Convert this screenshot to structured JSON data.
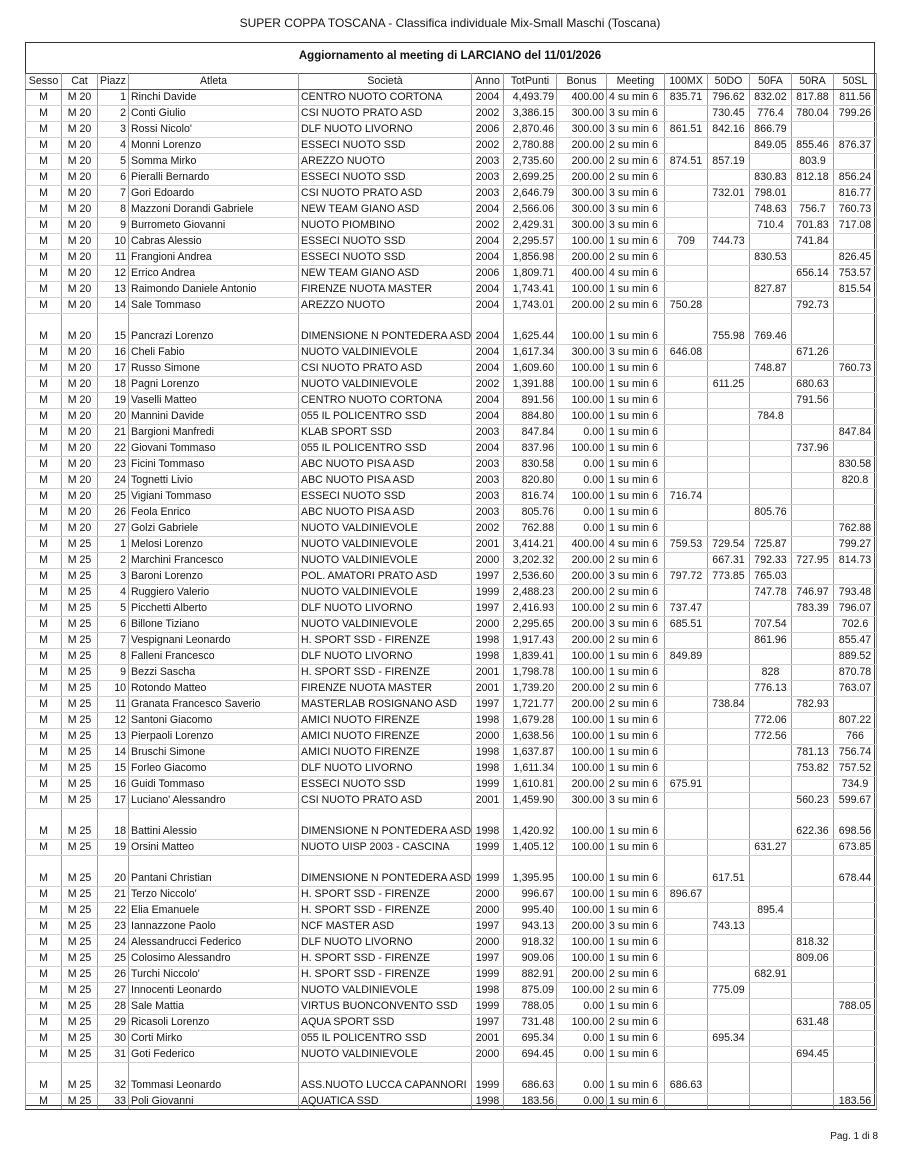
{
  "document": {
    "title": "SUPER COPPA TOSCANA - Classifica individuale Mix-Small Maschi (Toscana)",
    "subtitle": "Aggiornamento al meeting di LARCIANO del 11/01/2026",
    "footer": "Pag. 1 di 8"
  },
  "table": {
    "columns": [
      "Sesso",
      "Cat",
      "Piazz",
      "Atleta",
      "Società",
      "Anno",
      "TotPunti",
      "Bonus",
      "Meeting",
      "100MX",
      "50DO",
      "50FA",
      "50RA",
      "50SL"
    ],
    "rows": [
      [
        "M",
        "M 20",
        "1",
        "Rinchi Davide",
        "CENTRO NUOTO CORTONA",
        "2004",
        "4,493.79",
        "400.00",
        "4 su min 6",
        "835.71",
        "796.62",
        "832.02",
        "817.88",
        "811.56"
      ],
      [
        "M",
        "M 20",
        "2",
        "Conti Giulio",
        "CSI NUOTO PRATO ASD",
        "2002",
        "3,386.15",
        "300.00",
        "3 su min 6",
        "",
        "730.45",
        "776.4",
        "780.04",
        "799.26"
      ],
      [
        "M",
        "M 20",
        "3",
        "Rossi Nicolo'",
        "DLF NUOTO LIVORNO",
        "2006",
        "2,870.46",
        "300.00",
        "3 su min 6",
        "861.51",
        "842.16",
        "866.79",
        "",
        ""
      ],
      [
        "M",
        "M 20",
        "4",
        "Monni Lorenzo",
        "ESSECI NUOTO SSD",
        "2002",
        "2,780.88",
        "200.00",
        "2 su min 6",
        "",
        "",
        "849.05",
        "855.46",
        "876.37"
      ],
      [
        "M",
        "M 20",
        "5",
        "Somma Mirko",
        "AREZZO NUOTO",
        "2003",
        "2,735.60",
        "200.00",
        "2 su min 6",
        "874.51",
        "857.19",
        "",
        "803.9",
        ""
      ],
      [
        "M",
        "M 20",
        "6",
        "Pieralli Bernardo",
        "ESSECI NUOTO SSD",
        "2003",
        "2,699.25",
        "200.00",
        "2 su min 6",
        "",
        "",
        "830.83",
        "812.18",
        "856.24"
      ],
      [
        "M",
        "M 20",
        "7",
        "Gori Edoardo",
        "CSI NUOTO PRATO ASD",
        "2003",
        "2,646.79",
        "300.00",
        "3 su min 6",
        "",
        "732.01",
        "798.01",
        "",
        "816.77"
      ],
      [
        "M",
        "M 20",
        "8",
        "Mazzoni Dorandi Gabriele",
        "NEW TEAM GIANO ASD",
        "2004",
        "2,566.06",
        "300.00",
        "3 su min 6",
        "",
        "",
        "748.63",
        "756.7",
        "760.73"
      ],
      [
        "M",
        "M 20",
        "9",
        "Burrometo Giovanni",
        "NUOTO PIOMBINO",
        "2002",
        "2,429.31",
        "300.00",
        "3 su min 6",
        "",
        "",
        "710.4",
        "701.83",
        "717.08"
      ],
      [
        "M",
        "M 20",
        "10",
        "Cabras Alessio",
        "ESSECI NUOTO SSD",
        "2004",
        "2,295.57",
        "100.00",
        "1 su min 6",
        "709",
        "744.73",
        "",
        "741.84",
        ""
      ],
      [
        "M",
        "M 20",
        "11",
        "Frangioni Andrea",
        "ESSECI NUOTO SSD",
        "2004",
        "1,856.98",
        "200.00",
        "2 su min 6",
        "",
        "",
        "830.53",
        "",
        "826.45"
      ],
      [
        "M",
        "M 20",
        "12",
        "Errico Andrea",
        "NEW TEAM GIANO ASD",
        "2006",
        "1,809.71",
        "400.00",
        "4 su min 6",
        "",
        "",
        "",
        "656.14",
        "753.57"
      ],
      [
        "M",
        "M 20",
        "13",
        "Raimondo Daniele Antonio",
        "FIRENZE NUOTA MASTER",
        "2004",
        "1,743.41",
        "100.00",
        "1 su min 6",
        "",
        "",
        "827.87",
        "",
        "815.54"
      ],
      [
        "M",
        "M 20",
        "14",
        "Sale Tommaso",
        "AREZZO NUOTO",
        "2004",
        "1,743.01",
        "200.00",
        "2 su min 6",
        "750.28",
        "",
        "",
        "792.73",
        ""
      ],
      [
        "M",
        "M 20",
        "15",
        "Pancrazi Lorenzo",
        "DIMENSIONE N PONTEDERA ASD",
        "2004",
        "1,625.44",
        "100.00",
        "1 su min 6",
        "",
        "755.98",
        "769.46",
        "",
        ""
      ],
      [
        "M",
        "M 20",
        "16",
        "Cheli Fabio",
        "NUOTO VALDINIEVOLE",
        "2004",
        "1,617.34",
        "300.00",
        "3 su min 6",
        "646.08",
        "",
        "",
        "671.26",
        ""
      ],
      [
        "M",
        "M 20",
        "17",
        "Russo Simone",
        "CSI NUOTO PRATO ASD",
        "2004",
        "1,609.60",
        "100.00",
        "1 su min 6",
        "",
        "",
        "748.87",
        "",
        "760.73"
      ],
      [
        "M",
        "M 20",
        "18",
        "Pagni Lorenzo",
        "NUOTO VALDINIEVOLE",
        "2002",
        "1,391.88",
        "100.00",
        "1 su min 6",
        "",
        "611.25",
        "",
        "680.63",
        ""
      ],
      [
        "M",
        "M 20",
        "19",
        "Vaselli Matteo",
        "CENTRO NUOTO CORTONA",
        "2004",
        "891.56",
        "100.00",
        "1 su min 6",
        "",
        "",
        "",
        "791.56",
        ""
      ],
      [
        "M",
        "M 20",
        "20",
        "Mannini Davide",
        "055 IL POLICENTRO SSD",
        "2004",
        "884.80",
        "100.00",
        "1 su min 6",
        "",
        "",
        "784.8",
        "",
        ""
      ],
      [
        "M",
        "M 20",
        "21",
        "Bargioni Manfredi",
        "KLAB SPORT SSD",
        "2003",
        "847.84",
        "0.00",
        "1 su min 6",
        "",
        "",
        "",
        "",
        "847.84"
      ],
      [
        "M",
        "M 20",
        "22",
        "Giovani Tommaso",
        "055 IL POLICENTRO SSD",
        "2004",
        "837.96",
        "100.00",
        "1 su min 6",
        "",
        "",
        "",
        "737.96",
        ""
      ],
      [
        "M",
        "M 20",
        "23",
        "Ficini Tommaso",
        "ABC NUOTO PISA ASD",
        "2003",
        "830.58",
        "0.00",
        "1 su min 6",
        "",
        "",
        "",
        "",
        "830.58"
      ],
      [
        "M",
        "M 20",
        "24",
        "Tognetti Livio",
        "ABC NUOTO PISA ASD",
        "2003",
        "820.80",
        "0.00",
        "1 su min 6",
        "",
        "",
        "",
        "",
        "820.8"
      ],
      [
        "M",
        "M 20",
        "25",
        "Vigiani Tommaso",
        "ESSECI NUOTO SSD",
        "2003",
        "816.74",
        "100.00",
        "1 su min 6",
        "716.74",
        "",
        "",
        "",
        ""
      ],
      [
        "M",
        "M 20",
        "26",
        "Feola Enrico",
        "ABC NUOTO PISA ASD",
        "2003",
        "805.76",
        "0.00",
        "1 su min 6",
        "",
        "",
        "805.76",
        "",
        ""
      ],
      [
        "M",
        "M 20",
        "27",
        "Golzi Gabriele",
        "NUOTO VALDINIEVOLE",
        "2002",
        "762.88",
        "0.00",
        "1 su min 6",
        "",
        "",
        "",
        "",
        "762.88"
      ],
      [
        "M",
        "M 25",
        "1",
        "Melosi Lorenzo",
        "NUOTO VALDINIEVOLE",
        "2001",
        "3,414.21",
        "400.00",
        "4 su min 6",
        "759.53",
        "729.54",
        "725.87",
        "",
        "799.27"
      ],
      [
        "M",
        "M 25",
        "2",
        "Marchini Francesco",
        "NUOTO VALDINIEVOLE",
        "2000",
        "3,202.32",
        "200.00",
        "2 su min 6",
        "",
        "667.31",
        "792.33",
        "727.95",
        "814.73"
      ],
      [
        "M",
        "M 25",
        "3",
        "Baroni Lorenzo",
        "POL. AMATORI PRATO ASD",
        "1997",
        "2,536.60",
        "200.00",
        "3 su min 6",
        "797.72",
        "773.85",
        "765.03",
        "",
        ""
      ],
      [
        "M",
        "M 25",
        "4",
        "Ruggiero Valerio",
        "NUOTO VALDINIEVOLE",
        "1999",
        "2,488.23",
        "200.00",
        "2 su min 6",
        "",
        "",
        "747.78",
        "746.97",
        "793.48"
      ],
      [
        "M",
        "M 25",
        "5",
        "Picchetti Alberto",
        "DLF NUOTO LIVORNO",
        "1997",
        "2,416.93",
        "100.00",
        "2 su min 6",
        "737.47",
        "",
        "",
        "783.39",
        "796.07"
      ],
      [
        "M",
        "M 25",
        "6",
        "Billone Tiziano",
        "NUOTO VALDINIEVOLE",
        "2000",
        "2,295.65",
        "200.00",
        "3 su min 6",
        "685.51",
        "",
        "707.54",
        "",
        "702.6"
      ],
      [
        "M",
        "M 25",
        "7",
        "Vespignani Leonardo",
        "H. SPORT SSD - FIRENZE",
        "1998",
        "1,917.43",
        "200.00",
        "2 su min 6",
        "",
        "",
        "861.96",
        "",
        "855.47"
      ],
      [
        "M",
        "M 25",
        "8",
        "Falleni Francesco",
        "DLF NUOTO LIVORNO",
        "1998",
        "1,839.41",
        "100.00",
        "1 su min 6",
        "849.89",
        "",
        "",
        "",
        "889.52"
      ],
      [
        "M",
        "M 25",
        "9",
        "Bezzi Sascha",
        "H. SPORT SSD - FIRENZE",
        "2001",
        "1,798.78",
        "100.00",
        "1 su min 6",
        "",
        "",
        "828",
        "",
        "870.78"
      ],
      [
        "M",
        "M 25",
        "10",
        "Rotondo Matteo",
        "FIRENZE NUOTA MASTER",
        "2001",
        "1,739.20",
        "200.00",
        "2 su min 6",
        "",
        "",
        "776.13",
        "",
        "763.07"
      ],
      [
        "M",
        "M 25",
        "11",
        "Granata Francesco Saverio",
        "MASTERLAB ROSIGNANO ASD",
        "1997",
        "1,721.77",
        "200.00",
        "2 su min 6",
        "",
        "738.84",
        "",
        "782.93",
        ""
      ],
      [
        "M",
        "M 25",
        "12",
        "Santoni Giacomo",
        "AMICI NUOTO FIRENZE",
        "1998",
        "1,679.28",
        "100.00",
        "1 su min 6",
        "",
        "",
        "772.06",
        "",
        "807.22"
      ],
      [
        "M",
        "M 25",
        "13",
        "Pierpaoli Lorenzo",
        "AMICI NUOTO FIRENZE",
        "2000",
        "1,638.56",
        "100.00",
        "1 su min 6",
        "",
        "",
        "772.56",
        "",
        "766"
      ],
      [
        "M",
        "M 25",
        "14",
        "Bruschi Simone",
        "AMICI NUOTO FIRENZE",
        "1998",
        "1,637.87",
        "100.00",
        "1 su min 6",
        "",
        "",
        "",
        "781.13",
        "756.74"
      ],
      [
        "M",
        "M 25",
        "15",
        "Forleo Giacomo",
        "DLF NUOTO LIVORNO",
        "1998",
        "1,611.34",
        "100.00",
        "1 su min 6",
        "",
        "",
        "",
        "753.82",
        "757.52"
      ],
      [
        "M",
        "M 25",
        "16",
        "Guidi Tommaso",
        "ESSECI NUOTO SSD",
        "1999",
        "1,610.81",
        "200.00",
        "2 su min 6",
        "675.91",
        "",
        "",
        "",
        "734.9"
      ],
      [
        "M",
        "M 25",
        "17",
        "Luciano' Alessandro",
        "CSI NUOTO PRATO ASD",
        "2001",
        "1,459.90",
        "300.00",
        "3 su min 6",
        "",
        "",
        "",
        "560.23",
        "599.67"
      ],
      [
        "M",
        "M 25",
        "18",
        "Battini Alessio",
        "DIMENSIONE N PONTEDERA ASD",
        "1998",
        "1,420.92",
        "100.00",
        "1 su min 6",
        "",
        "",
        "",
        "622.36",
        "698.56"
      ],
      [
        "M",
        "M 25",
        "19",
        "Orsini Matteo",
        "NUOTO UISP 2003 - CASCINA",
        "1999",
        "1,405.12",
        "100.00",
        "1 su min 6",
        "",
        "",
        "631.27",
        "",
        "673.85"
      ],
      [
        "M",
        "M 25",
        "20",
        "Pantani Christian",
        "DIMENSIONE N PONTEDERA ASD",
        "1999",
        "1,395.95",
        "100.00",
        "1 su min 6",
        "",
        "617.51",
        "",
        "",
        "678.44"
      ],
      [
        "M",
        "M 25",
        "21",
        "Terzo Niccolo'",
        "H. SPORT SSD - FIRENZE",
        "2000",
        "996.67",
        "100.00",
        "1 su min 6",
        "896.67",
        "",
        "",
        "",
        ""
      ],
      [
        "M",
        "M 25",
        "22",
        "Elia Emanuele",
        "H. SPORT SSD - FIRENZE",
        "2000",
        "995.40",
        "100.00",
        "1 su min 6",
        "",
        "",
        "895.4",
        "",
        ""
      ],
      [
        "M",
        "M 25",
        "23",
        "Iannazzone Paolo",
        "NCF MASTER ASD",
        "1997",
        "943.13",
        "200.00",
        "3 su min 6",
        "",
        "743.13",
        "",
        "",
        ""
      ],
      [
        "M",
        "M 25",
        "24",
        "Alessandrucci Federico",
        "DLF NUOTO LIVORNO",
        "2000",
        "918.32",
        "100.00",
        "1 su min 6",
        "",
        "",
        "",
        "818.32",
        ""
      ],
      [
        "M",
        "M 25",
        "25",
        "Colosimo Alessandro",
        "H. SPORT SSD - FIRENZE",
        "1997",
        "909.06",
        "100.00",
        "1 su min 6",
        "",
        "",
        "",
        "809.06",
        ""
      ],
      [
        "M",
        "M 25",
        "26",
        "Turchi Niccolo'",
        "H. SPORT SSD - FIRENZE",
        "1999",
        "882.91",
        "200.00",
        "2 su min 6",
        "",
        "",
        "682.91",
        "",
        ""
      ],
      [
        "M",
        "M 25",
        "27",
        "Innocenti Leonardo",
        "NUOTO VALDINIEVOLE",
        "1998",
        "875.09",
        "100.00",
        "2 su min 6",
        "",
        "775.09",
        "",
        "",
        ""
      ],
      [
        "M",
        "M 25",
        "28",
        "Sale Mattia",
        "VIRTUS BUONCONVENTO SSD",
        "1999",
        "788.05",
        "0.00",
        "1 su min 6",
        "",
        "",
        "",
        "",
        "788.05"
      ],
      [
        "M",
        "M 25",
        "29",
        "Ricasoli Lorenzo",
        "AQUA SPORT SSD",
        "1997",
        "731.48",
        "100.00",
        "2 su min 6",
        "",
        "",
        "",
        "631.48",
        ""
      ],
      [
        "M",
        "M 25",
        "30",
        "Corti Mirko",
        "055 IL POLICENTRO SSD",
        "2001",
        "695.34",
        "0.00",
        "1 su min 6",
        "",
        "695.34",
        "",
        "",
        ""
      ],
      [
        "M",
        "M 25",
        "31",
        "Goti Federico",
        "NUOTO VALDINIEVOLE",
        "2000",
        "694.45",
        "0.00",
        "1 su min 6",
        "",
        "",
        "",
        "694.45",
        ""
      ],
      [
        "M",
        "M 25",
        "32",
        "Tommasi Leonardo",
        "ASS.NUOTO LUCCA CAPANNORI",
        "1999",
        "686.63",
        "0.00",
        "1 su min 6",
        "686.63",
        "",
        "",
        "",
        ""
      ],
      [
        "M",
        "M 25",
        "33",
        "Poli Giovanni",
        "AQUATICA SSD",
        "1998",
        "183.56",
        "0.00",
        "1 su min 6",
        "",
        "",
        "",
        "",
        "183.56"
      ]
    ]
  }
}
